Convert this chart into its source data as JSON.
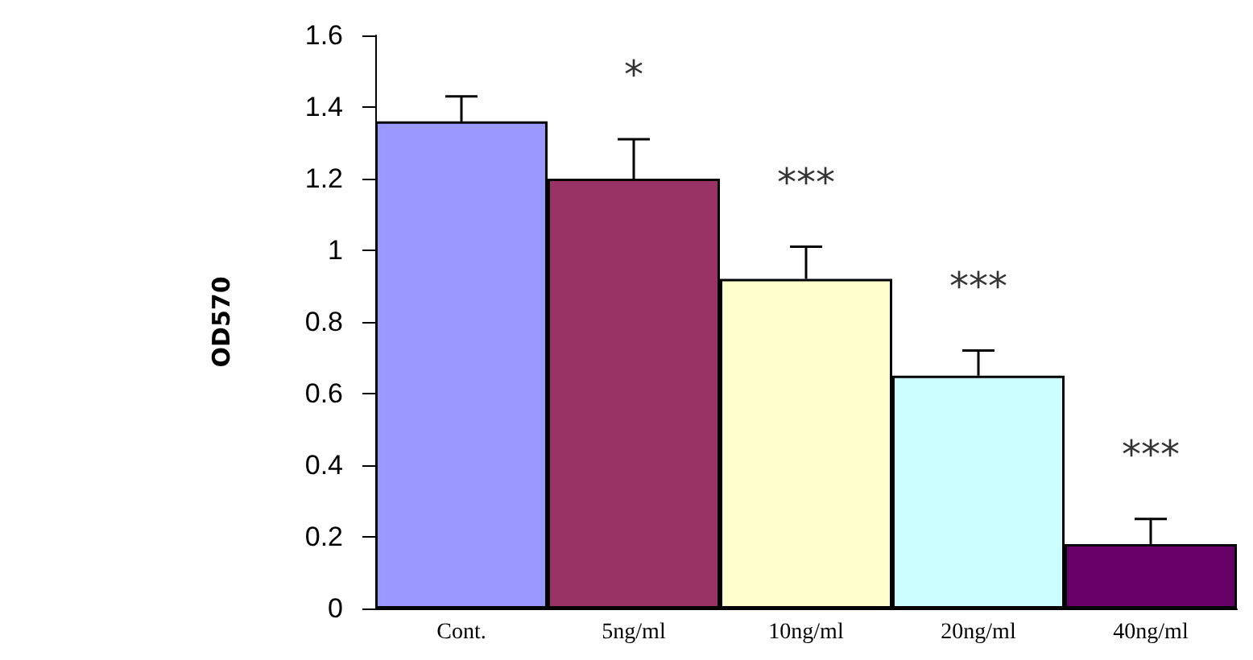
{
  "chart_data": {
    "type": "bar",
    "ylabel": "OD570",
    "categories": [
      "Cont.",
      "5ng/ml",
      "10ng/ml",
      "20ng/ml",
      "40ng/ml"
    ],
    "values": [
      1.36,
      1.2,
      0.92,
      0.65,
      0.18
    ],
    "colors": [
      "#9999ff",
      "#993366",
      "#ffffcc",
      "#ccffff",
      "#660066"
    ],
    "errors": [
      [
        1.36,
        1.43
      ],
      [
        1.2,
        1.31
      ],
      [
        0.92,
        1.01
      ],
      [
        0.65,
        0.72
      ],
      [
        0.18,
        0.25
      ]
    ],
    "ylim": [
      0,
      1.6
    ],
    "yticks": [
      0,
      0.2,
      0.4,
      0.6,
      0.8,
      1,
      1.2,
      1.4,
      1.6
    ],
    "grid": false,
    "annotations": [
      "*",
      "***",
      "***",
      "***"
    ]
  }
}
